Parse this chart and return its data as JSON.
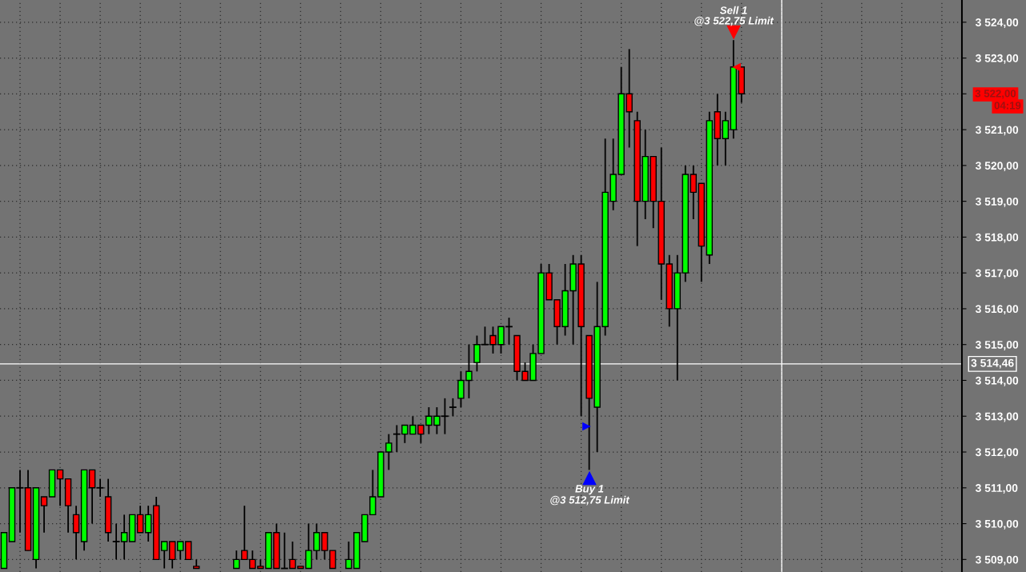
{
  "chart_data": {
    "type": "candlestick",
    "categories": [
      null,
      null,
      null,
      null,
      null,
      null,
      null,
      null,
      null,
      null,
      null,
      null,
      null,
      null,
      null,
      null,
      null,
      null,
      null,
      null,
      null,
      null,
      null,
      null,
      null,
      null,
      null,
      null,
      null,
      null,
      null,
      null,
      null,
      null,
      null,
      null,
      null,
      null,
      null,
      null,
      null,
      null,
      null,
      null,
      null,
      null,
      null,
      null,
      null,
      null,
      null,
      null,
      null,
      null,
      null,
      null,
      null,
      null,
      null,
      null,
      null,
      null,
      null,
      null,
      null,
      null,
      null,
      null,
      null,
      null,
      null,
      null,
      null,
      null,
      null,
      null,
      null,
      null,
      null,
      null,
      null,
      null,
      null,
      null,
      null,
      null,
      null,
      null,
      null,
      null,
      null,
      null,
      null,
      null,
      null,
      null,
      null,
      null,
      null,
      null,
      null,
      null,
      null,
      null,
      null,
      null,
      null,
      null,
      null,
      null,
      null,
      null,
      null,
      null,
      null,
      null,
      null,
      null,
      null,
      null
    ],
    "ohlc": [
      [
        3508.75,
        3509.75,
        3508.75,
        3509.75
      ],
      [
        3509.5,
        3511,
        3509.5,
        3511
      ],
      [
        3511,
        3511.5,
        3509.75,
        3511
      ],
      [
        3511,
        3511.5,
        3509.25,
        3509.25
      ],
      [
        3509,
        3511,
        3508.75,
        3511
      ],
      [
        3510.75,
        3510.75,
        3509.75,
        3510.5
      ],
      [
        3510.75,
        3511.5,
        3510.75,
        3511.5
      ],
      [
        3511.5,
        3511.5,
        3510.5,
        3511.25
      ],
      [
        3511.25,
        3511.25,
        3509.75,
        3510.5
      ],
      [
        3510.25,
        3510.5,
        3509,
        3509.75
      ],
      [
        3509.5,
        3511.5,
        3509.25,
        3511.5
      ],
      [
        3511.5,
        3511.5,
        3510,
        3511
      ],
      [
        3511,
        3511.25,
        3510.75,
        3511
      ],
      [
        3510.75,
        3511.25,
        3509.5,
        3509.75
      ],
      [
        3509.5,
        3510,
        3509,
        3509.5
      ],
      [
        3509.5,
        3510.25,
        3509,
        3509.75
      ],
      [
        3509.5,
        3510.25,
        3509.5,
        3510.25
      ],
      [
        3510.25,
        3510.5,
        3509.75,
        3509.75
      ],
      [
        3509.75,
        3510.5,
        3509.5,
        3510.25
      ],
      [
        3510.5,
        3510.75,
        3509,
        3509
      ],
      [
        3509.25,
        3509.5,
        3508.75,
        3509.5
      ],
      [
        3509.5,
        3509.5,
        3508.75,
        3509
      ],
      [
        3509.25,
        3509.5,
        3509,
        3509.5
      ],
      [
        3509.5,
        3509.5,
        3509,
        3509
      ],
      [
        3508.75,
        3509,
        3508.75,
        3508.75
      ],
      null,
      null,
      null,
      null,
      [
        3508.75,
        3509.25,
        3508.75,
        3509
      ],
      [
        3509.25,
        3510.5,
        3509,
        3509
      ],
      [
        3509,
        3509.25,
        3508.75,
        3508.75
      ],
      [
        3508.75,
        3509,
        3508.75,
        3508.75
      ],
      [
        3508.75,
        3509.75,
        3508.75,
        3509.75
      ],
      [
        3509.75,
        3510,
        3508.75,
        3508.75
      ],
      [
        3508.75,
        3509.75,
        3508.75,
        3508.75
      ],
      [
        3509,
        3509.5,
        3508.75,
        3508.75
      ],
      [
        3508.75,
        3508.75,
        3508.75,
        3508.75
      ],
      [
        3508.75,
        3510,
        3508.75,
        3509.25
      ],
      [
        3509.25,
        3510,
        3509,
        3509.75
      ],
      [
        3509.75,
        3509.75,
        3509,
        3509.25
      ],
      [
        3509.25,
        3509.25,
        3508.75,
        3508.75
      ],
      null,
      [
        3508.75,
        3509.5,
        3508.75,
        3509
      ],
      [
        3508.75,
        3509.75,
        3508.75,
        3509.75
      ],
      [
        3509.5,
        3510.25,
        3509.5,
        3510.25
      ],
      [
        3510.25,
        3511.5,
        3510.25,
        3510.75
      ],
      [
        3510.75,
        3512,
        3510.75,
        3512
      ],
      [
        3512,
        3512.5,
        3511.5,
        3512.25
      ],
      [
        3512.5,
        3512.75,
        3512,
        3512.5
      ],
      [
        3512.5,
        3512.75,
        3512.25,
        3512.75
      ],
      [
        3512.5,
        3513,
        3512.5,
        3512.75
      ],
      [
        3512.75,
        3512.75,
        3512.25,
        3512.5
      ],
      [
        3512.75,
        3513.25,
        3512.5,
        3513
      ],
      [
        3512.75,
        3513.25,
        3512.5,
        3513
      ],
      [
        3513,
        3513.5,
        3512.5,
        3513
      ],
      [
        3513.25,
        3513.5,
        3513,
        3513.25
      ],
      [
        3513.5,
        3514.25,
        3513.25,
        3514
      ],
      [
        3514,
        3515,
        3513.5,
        3514.25
      ],
      [
        3514.5,
        3515.25,
        3514.25,
        3515
      ],
      [
        3515,
        3515.5,
        3515,
        3515
      ],
      [
        3515.25,
        3515.5,
        3514.75,
        3515
      ],
      [
        3515,
        3515.5,
        3514.75,
        3515.5
      ],
      [
        3515.5,
        3515.75,
        3515,
        3515.5
      ],
      [
        3515.25,
        3515.25,
        3514,
        3514.25
      ],
      [
        3514.25,
        3514.5,
        3514,
        3514
      ],
      [
        3514,
        3515,
        3514,
        3514.75
      ],
      [
        3514.75,
        3517.25,
        3514.75,
        3517
      ],
      [
        3517,
        3517.25,
        3516.25,
        3516.25
      ],
      [
        3516.25,
        3516.25,
        3515,
        3515.5
      ],
      [
        3515.5,
        3517.25,
        3515.25,
        3516.5
      ],
      [
        3516.5,
        3517.5,
        3515,
        3517.25
      ],
      [
        3517.25,
        3517.5,
        3513,
        3515.5
      ],
      [
        3515.25,
        3515.25,
        3511.5,
        3513.5
      ],
      [
        3513.25,
        3516.75,
        3512,
        3515.5
      ],
      [
        3515.5,
        3520.75,
        3515.25,
        3519.25
      ],
      [
        3519,
        3520.75,
        3518.75,
        3519.75
      ],
      [
        3519.75,
        3522.75,
        3519.75,
        3522
      ],
      [
        3522,
        3523.25,
        3520.5,
        3521.5
      ],
      [
        3521.25,
        3521.5,
        3517.75,
        3519
      ],
      [
        3519,
        3521,
        3518.5,
        3520.25
      ],
      [
        3520.25,
        3520.25,
        3518.25,
        3519
      ],
      [
        3519,
        3520.5,
        3516.25,
        3517.25
      ],
      [
        3517.25,
        3517.5,
        3515.5,
        3516
      ],
      [
        3516,
        3517.5,
        3514,
        3517
      ],
      [
        3517,
        3520,
        3516.75,
        3519.75
      ],
      [
        3519.75,
        3520,
        3518.5,
        3519.25
      ],
      [
        3519.5,
        3519.5,
        3516.75,
        3517.75
      ],
      [
        3517.5,
        3521.5,
        3517.25,
        3521.25
      ],
      [
        3521.5,
        3522,
        3520,
        3520.75
      ],
      [
        3520.75,
        3521.5,
        3520,
        3521.25
      ],
      [
        3521,
        3523.5,
        3520.75,
        3522.75
      ],
      [
        3522.75,
        3522.75,
        3521.75,
        3522
      ],
      null,
      null,
      null,
      null,
      null,
      null,
      null,
      null,
      null,
      null,
      null,
      null,
      null,
      null,
      null,
      null,
      null,
      null,
      null,
      null,
      null,
      null,
      null,
      null,
      null,
      null,
      null
    ],
    "colors": [
      "#00ff00",
      "#00ff00",
      "#000000",
      "#ff0000",
      "#00ff00",
      "#ff0000",
      "#00ff00",
      "#ff0000",
      "#ff0000",
      "#ff0000",
      "#00ff00",
      "#ff0000",
      "#000000",
      "#ff0000",
      "#000000",
      "#00ff00",
      "#00ff00",
      "#ff0000",
      "#00ff00",
      "#ff0000",
      "#00ff00",
      "#ff0000",
      "#00ff00",
      "#ff0000",
      "#ff0000",
      null,
      null,
      null,
      null,
      "#00ff00",
      "#ff0000",
      "#ff0000",
      "#ff0000",
      "#00ff00",
      "#ff0000",
      "#000000",
      "#ff0000",
      "#ff0000",
      "#00ff00",
      "#00ff00",
      "#ff0000",
      "#ff0000",
      null,
      "#00ff00",
      "#00ff00",
      "#00ff00",
      "#00ff00",
      "#00ff00",
      "#00ff00",
      "#000000",
      "#00ff00",
      "#00ff00",
      "#ff0000",
      "#00ff00",
      "#00ff00",
      "#000000",
      "#000000",
      "#00ff00",
      "#00ff00",
      "#00ff00",
      "#000000",
      "#ff0000",
      "#00ff00",
      "#000000",
      "#ff0000",
      "#ff0000",
      "#00ff00",
      "#00ff00",
      "#ff0000",
      "#ff0000",
      "#00ff00",
      "#00ff00",
      "#ff0000",
      "#ff0000",
      "#00ff00",
      "#00ff00",
      "#00ff00",
      "#00ff00",
      "#ff0000",
      "#ff0000",
      "#00ff00",
      "#ff0000",
      "#ff0000",
      "#ff0000",
      "#00ff00",
      "#00ff00",
      "#ff0000",
      "#ff0000",
      "#00ff00",
      "#ff0000",
      "#00ff00",
      "#00ff00",
      "#ff0000",
      null,
      null,
      null,
      null,
      null,
      null,
      null,
      null,
      null,
      null,
      null,
      null,
      null,
      null,
      null,
      null,
      null,
      null,
      null,
      null,
      null,
      null,
      null,
      null,
      null,
      null,
      null
    ],
    "ylim": [
      3508.65,
      3524.62
    ],
    "yticks": [
      {
        "value": 3509,
        "label": "3 509,00"
      },
      {
        "value": 3510,
        "label": "3 510,00"
      },
      {
        "value": 3511,
        "label": "3 511,00"
      },
      {
        "value": 3512,
        "label": "3 512,00"
      },
      {
        "value": 3513,
        "label": "3 513,00"
      },
      {
        "value": 3514,
        "label": "3 514,00"
      },
      {
        "value": 3515,
        "label": "3 515,00"
      },
      {
        "value": 3516,
        "label": "3 516,00"
      },
      {
        "value": 3517,
        "label": "3 517,00"
      },
      {
        "value": 3518,
        "label": "3 518,00"
      },
      {
        "value": 3519,
        "label": "3 519,00"
      },
      {
        "value": 3520,
        "label": "3 520,00"
      },
      {
        "value": 3521,
        "label": "3 521,00"
      },
      {
        "value": 3522,
        "label": null
      },
      {
        "value": 3523,
        "label": "3 523,00"
      },
      {
        "value": 3524,
        "label": "3 524,00"
      }
    ],
    "ref_lines": [
      {
        "axis": "y",
        "value": 3514.46,
        "label": "3 514,46",
        "color": "#ffffff"
      }
    ],
    "annotations": [
      "Sell 1",
      "@3 522,75 Limit",
      "Buy 1",
      "@3 512,75 Limit",
      "3 522,00",
      "04:19"
    ],
    "grid": true,
    "legend": false,
    "tick_labels": "y"
  }
}
